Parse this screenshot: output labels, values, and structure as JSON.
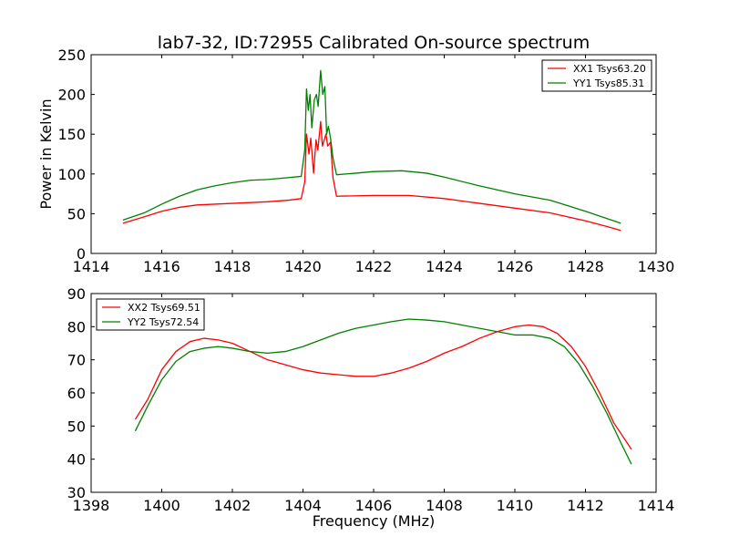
{
  "title": "lab7-32, ID:72955 Calibrated On-source spectrum",
  "chart_data": [
    {
      "type": "line",
      "ylabel": "Power in Kelvin",
      "xlabel": "",
      "xlim": [
        1414,
        1430
      ],
      "ylim": [
        0,
        250
      ],
      "xticks": [
        "1414",
        "1416",
        "1418",
        "1420",
        "1422",
        "1424",
        "1426",
        "1428",
        "1430"
      ],
      "yticks": [
        "0",
        "50",
        "100",
        "150",
        "200",
        "250"
      ],
      "grid": false,
      "legend_position": "top-right",
      "series": [
        {
          "name": "XX1 Tsys63.20",
          "color": "#ff0000",
          "points": [
            [
              1414.9,
              38
            ],
            [
              1415.5,
              46
            ],
            [
              1416.0,
              53
            ],
            [
              1416.5,
              58
            ],
            [
              1417.0,
              61
            ],
            [
              1418.0,
              63
            ],
            [
              1419.0,
              65
            ],
            [
              1419.6,
              67
            ],
            [
              1419.95,
              69
            ],
            [
              1420.05,
              90
            ],
            [
              1420.1,
              150
            ],
            [
              1420.17,
              125
            ],
            [
              1420.22,
              145
            ],
            [
              1420.3,
              101
            ],
            [
              1420.37,
              143
            ],
            [
              1420.42,
              130
            ],
            [
              1420.5,
              166
            ],
            [
              1420.55,
              135
            ],
            [
              1420.65,
              150
            ],
            [
              1420.7,
              135
            ],
            [
              1420.78,
              140
            ],
            [
              1420.85,
              95
            ],
            [
              1420.95,
              72
            ],
            [
              1422.0,
              73
            ],
            [
              1423.0,
              73
            ],
            [
              1424.0,
              69
            ],
            [
              1425.0,
              63
            ],
            [
              1426.0,
              57
            ],
            [
              1427.0,
              51
            ],
            [
              1428.0,
              41
            ],
            [
              1428.6,
              34
            ],
            [
              1429.0,
              29
            ]
          ]
        },
        {
          "name": "YY1 Tsys85.31",
          "color": "#008000",
          "points": [
            [
              1414.9,
              42
            ],
            [
              1415.5,
              51
            ],
            [
              1416.0,
              62
            ],
            [
              1416.5,
              72
            ],
            [
              1417.0,
              80
            ],
            [
              1417.5,
              85
            ],
            [
              1418.0,
              89
            ],
            [
              1418.5,
              92
            ],
            [
              1419.0,
              93
            ],
            [
              1419.5,
              95
            ],
            [
              1419.95,
              97
            ],
            [
              1420.05,
              130
            ],
            [
              1420.1,
              207
            ],
            [
              1420.15,
              180
            ],
            [
              1420.2,
              200
            ],
            [
              1420.25,
              158
            ],
            [
              1420.32,
              193
            ],
            [
              1420.38,
              200
            ],
            [
              1420.43,
              185
            ],
            [
              1420.5,
              230
            ],
            [
              1420.56,
              200
            ],
            [
              1420.62,
              210
            ],
            [
              1420.67,
              150
            ],
            [
              1420.72,
              160
            ],
            [
              1420.78,
              145
            ],
            [
              1420.85,
              120
            ],
            [
              1420.95,
              99
            ],
            [
              1421.5,
              101
            ],
            [
              1422.0,
              103
            ],
            [
              1422.8,
              104
            ],
            [
              1423.5,
              101
            ],
            [
              1424.0,
              96
            ],
            [
              1425.0,
              85
            ],
            [
              1426.0,
              75
            ],
            [
              1427.0,
              67
            ],
            [
              1428.0,
              53
            ],
            [
              1428.6,
              44
            ],
            [
              1429.0,
              38
            ]
          ]
        }
      ]
    },
    {
      "type": "line",
      "xlabel": "Frequency (MHz)",
      "ylabel": "",
      "xlim": [
        1398,
        1414
      ],
      "ylim": [
        30,
        90
      ],
      "xticks": [
        "1398",
        "1400",
        "1402",
        "1404",
        "1406",
        "1408",
        "1410",
        "1412",
        "1414"
      ],
      "yticks": [
        "30",
        "40",
        "50",
        "60",
        "70",
        "80",
        "90"
      ],
      "grid": false,
      "legend_position": "top-left",
      "series": [
        {
          "name": "XX2 Tsys69.51",
          "color": "#ff0000",
          "points": [
            [
              1399.25,
              52
            ],
            [
              1399.6,
              58
            ],
            [
              1400.0,
              67
            ],
            [
              1400.4,
              72.5
            ],
            [
              1400.8,
              75.5
            ],
            [
              1401.2,
              76.5
            ],
            [
              1401.6,
              76
            ],
            [
              1402.0,
              75
            ],
            [
              1402.5,
              72.5
            ],
            [
              1403.0,
              70
            ],
            [
              1403.5,
              68.5
            ],
            [
              1404.0,
              67
            ],
            [
              1404.5,
              66
            ],
            [
              1405.0,
              65.5
            ],
            [
              1405.5,
              65
            ],
            [
              1406.0,
              65
            ],
            [
              1406.5,
              66
            ],
            [
              1407.0,
              67.5
            ],
            [
              1407.5,
              69.5
            ],
            [
              1408.0,
              72
            ],
            [
              1408.5,
              74
            ],
            [
              1409.0,
              76.5
            ],
            [
              1409.5,
              78.5
            ],
            [
              1410.0,
              80
            ],
            [
              1410.4,
              80.5
            ],
            [
              1410.8,
              80
            ],
            [
              1411.2,
              78
            ],
            [
              1411.6,
              74
            ],
            [
              1412.0,
              68
            ],
            [
              1412.4,
              60
            ],
            [
              1412.8,
              51
            ],
            [
              1413.3,
              43
            ]
          ]
        },
        {
          "name": "YY2 Tsys72.54",
          "color": "#008000",
          "points": [
            [
              1399.25,
              48.5
            ],
            [
              1399.6,
              56
            ],
            [
              1400.0,
              64
            ],
            [
              1400.4,
              69.5
            ],
            [
              1400.8,
              72.5
            ],
            [
              1401.2,
              73.5
            ],
            [
              1401.6,
              74
            ],
            [
              1402.0,
              73.5
            ],
            [
              1402.5,
              72.5
            ],
            [
              1403.0,
              72
            ],
            [
              1403.5,
              72.5
            ],
            [
              1404.0,
              74
            ],
            [
              1404.5,
              76
            ],
            [
              1405.0,
              78
            ],
            [
              1405.5,
              79.5
            ],
            [
              1406.0,
              80.5
            ],
            [
              1406.5,
              81.5
            ],
            [
              1407.0,
              82.3
            ],
            [
              1407.5,
              82
            ],
            [
              1408.0,
              81.5
            ],
            [
              1408.5,
              80.5
            ],
            [
              1409.0,
              79.5
            ],
            [
              1409.5,
              78.5
            ],
            [
              1410.0,
              77.5
            ],
            [
              1410.5,
              77.5
            ],
            [
              1411.0,
              76.5
            ],
            [
              1411.4,
              74
            ],
            [
              1411.8,
              69
            ],
            [
              1412.2,
              62
            ],
            [
              1412.6,
              54
            ],
            [
              1413.0,
              45
            ],
            [
              1413.3,
              38.5
            ]
          ]
        }
      ]
    }
  ]
}
